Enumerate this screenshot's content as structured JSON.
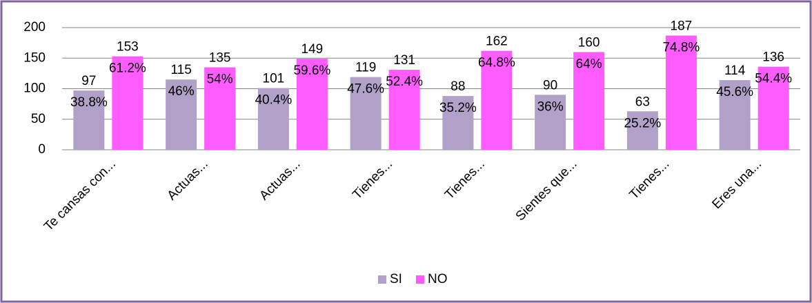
{
  "chart_data": {
    "type": "bar",
    "categories": [
      "Te cansas con...",
      "Actuas...",
      "Actuas...",
      "Tienes...",
      "Tienes...",
      "Sientes que...",
      "Tienes...",
      "Eres una..."
    ],
    "series": [
      {
        "name": "SI",
        "color": "#b1a0c7",
        "values": [
          97,
          115,
          101,
          119,
          88,
          90,
          63,
          114
        ],
        "percent_labels": [
          "38.8%",
          "46%",
          "40.4%",
          "47.6%",
          "35.2%",
          "36%",
          "25.2%",
          "45.6%"
        ]
      },
      {
        "name": "NO",
        "color": "#ff5cff",
        "values": [
          153,
          135,
          149,
          131,
          162,
          160,
          187,
          136
        ],
        "percent_labels": [
          "61.2%",
          "54%",
          "59.6%",
          "52.4%",
          "64.8%",
          "64%",
          "74.8%",
          "54.4%"
        ]
      }
    ],
    "ylim": [
      0,
      200
    ],
    "yticks": [
      0,
      50,
      100,
      150,
      200
    ],
    "grid": true,
    "legend": "bottom"
  }
}
